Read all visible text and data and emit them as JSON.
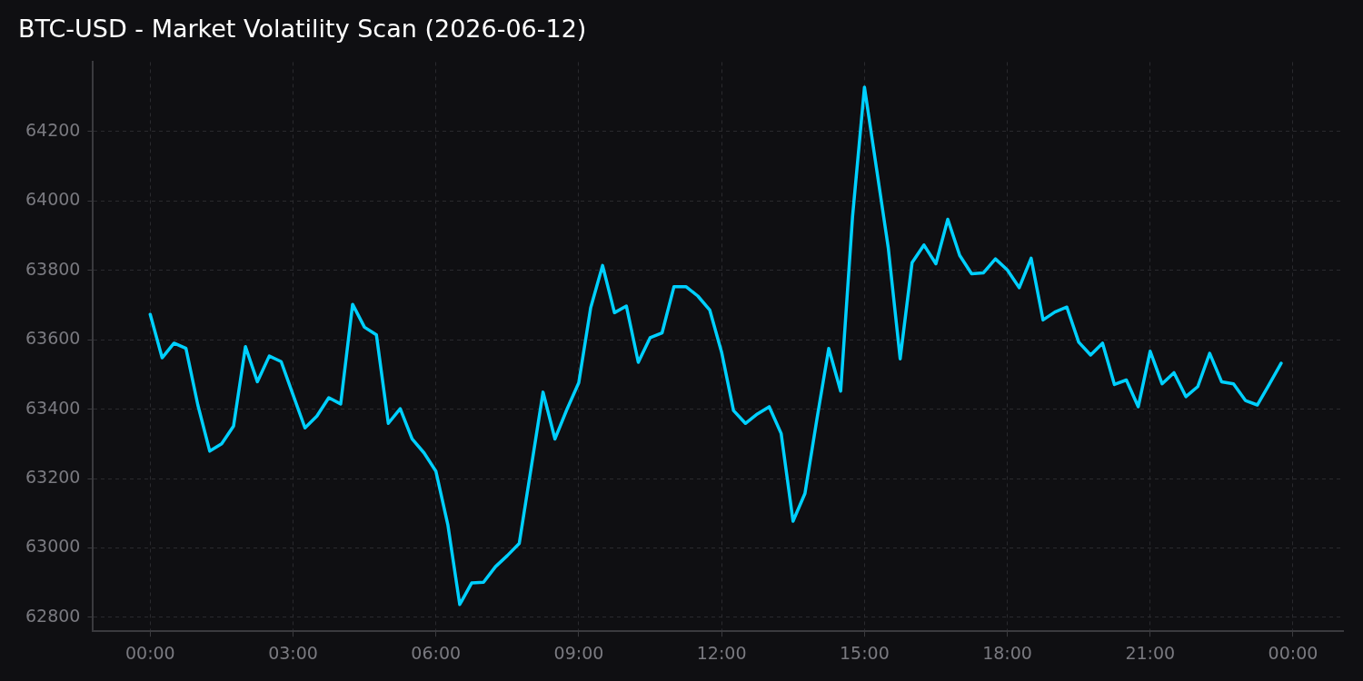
{
  "chart_data": {
    "type": "line",
    "title": "BTC-USD - Market Volatility Scan (2026-06-12)",
    "x": [
      0,
      0.25,
      0.5,
      0.75,
      1,
      1.25,
      1.5,
      1.75,
      2,
      2.25,
      2.5,
      2.75,
      3,
      3.25,
      3.5,
      3.75,
      4,
      4.25,
      4.5,
      4.75,
      5,
      5.25,
      5.5,
      5.75,
      6,
      6.25,
      6.5,
      6.75,
      7,
      7.25,
      7.5,
      7.75,
      8,
      8.25,
      8.5,
      8.75,
      9,
      9.25,
      9.5,
      9.75,
      10,
      10.25,
      10.5,
      10.75,
      11,
      11.25,
      11.5,
      11.75,
      12,
      12.25,
      12.5,
      12.75,
      13,
      13.25,
      13.5,
      13.75,
      14,
      14.25,
      14.5,
      14.75,
      15,
      15.25,
      15.5,
      15.75,
      16,
      16.25,
      16.5,
      16.75,
      17,
      17.25,
      17.5,
      17.75,
      18,
      18.25,
      18.5,
      18.75,
      19,
      19.25,
      19.5,
      19.75,
      20,
      20.25,
      20.5,
      20.75,
      21,
      21.25,
      21.5,
      21.75,
      22,
      22.25,
      22.5,
      22.75,
      23,
      23.25,
      23.5,
      23.75
    ],
    "series": [
      {
        "color": "#00d0ff",
        "values": [
          63673,
          63548,
          63590,
          63575,
          63412,
          63279,
          63300,
          63351,
          63580,
          63479,
          63553,
          63537,
          63441,
          63346,
          63380,
          63433,
          63415,
          63702,
          63636,
          63614,
          63359,
          63401,
          63314,
          63274,
          63221,
          63067,
          62837,
          62899,
          62901,
          62946,
          62978,
          63013,
          63231,
          63449,
          63314,
          63399,
          63476,
          63692,
          63814,
          63678,
          63697,
          63535,
          63606,
          63620,
          63753,
          63753,
          63726,
          63686,
          63564,
          63396,
          63359,
          63386,
          63407,
          63330,
          63077,
          63157,
          63370,
          63575,
          63452,
          63955,
          64328,
          64096,
          63865,
          63545,
          63822,
          63873,
          63819,
          63947,
          63843,
          63790,
          63793,
          63833,
          63801,
          63750,
          63835,
          63657,
          63680,
          63694,
          63593,
          63556,
          63590,
          63471,
          63484,
          63407,
          63567,
          63473,
          63505,
          63436,
          63465,
          63561,
          63479,
          63473,
          63425,
          63412,
          63471,
          63532
        ]
      }
    ],
    "xlim": [
      -1.2,
      25.05
    ],
    "ylim": [
      62760,
      64400
    ],
    "xticks": [
      {
        "value": 0,
        "label": "00:00"
      },
      {
        "value": 3,
        "label": "03:00"
      },
      {
        "value": 6,
        "label": "06:00"
      },
      {
        "value": 9,
        "label": "09:00"
      },
      {
        "value": 12,
        "label": "12:00"
      },
      {
        "value": 15,
        "label": "15:00"
      },
      {
        "value": 18,
        "label": "18:00"
      },
      {
        "value": 21,
        "label": "21:00"
      },
      {
        "value": 24,
        "label": "00:00"
      }
    ],
    "yticks": [
      62800,
      63000,
      63200,
      63400,
      63600,
      63800,
      64000,
      64200
    ],
    "grid": true,
    "marker": "none",
    "line_style": "solid"
  }
}
